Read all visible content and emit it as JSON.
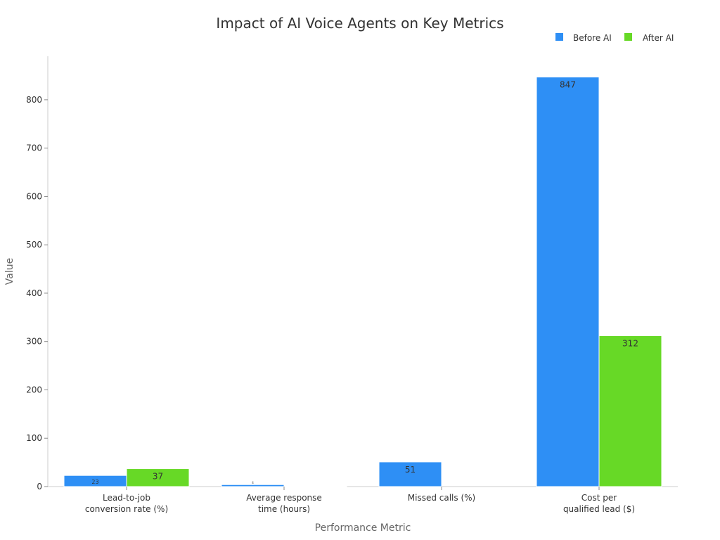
{
  "chart_data": {
    "type": "bar",
    "title": "Impact of AI Voice Agents on Key Metrics",
    "xlabel": "Performance Metric",
    "ylabel": "Value",
    "categories": [
      [
        "Lead-to-job",
        "conversion rate (%)"
      ],
      [
        "Average response",
        "time (hours)"
      ],
      [
        "Missed calls (%)"
      ],
      [
        "Cost per",
        "qualified lead ($)"
      ]
    ],
    "series": [
      {
        "name": "Before AI",
        "color": "#2e8ff5",
        "values": [
          23,
          4,
          51,
          847
        ],
        "labels": [
          "23",
          "4",
          "51",
          "847"
        ]
      },
      {
        "name": "After AI",
        "color": "#67d926",
        "values": [
          37,
          0.5,
          0,
          312
        ],
        "labels": [
          "37",
          "",
          "",
          "312"
        ]
      }
    ],
    "ylim": [
      0,
      890
    ],
    "yticks": [
      0,
      100,
      200,
      300,
      400,
      500,
      600,
      700,
      800
    ],
    "grid": false,
    "legend": "top-right"
  }
}
